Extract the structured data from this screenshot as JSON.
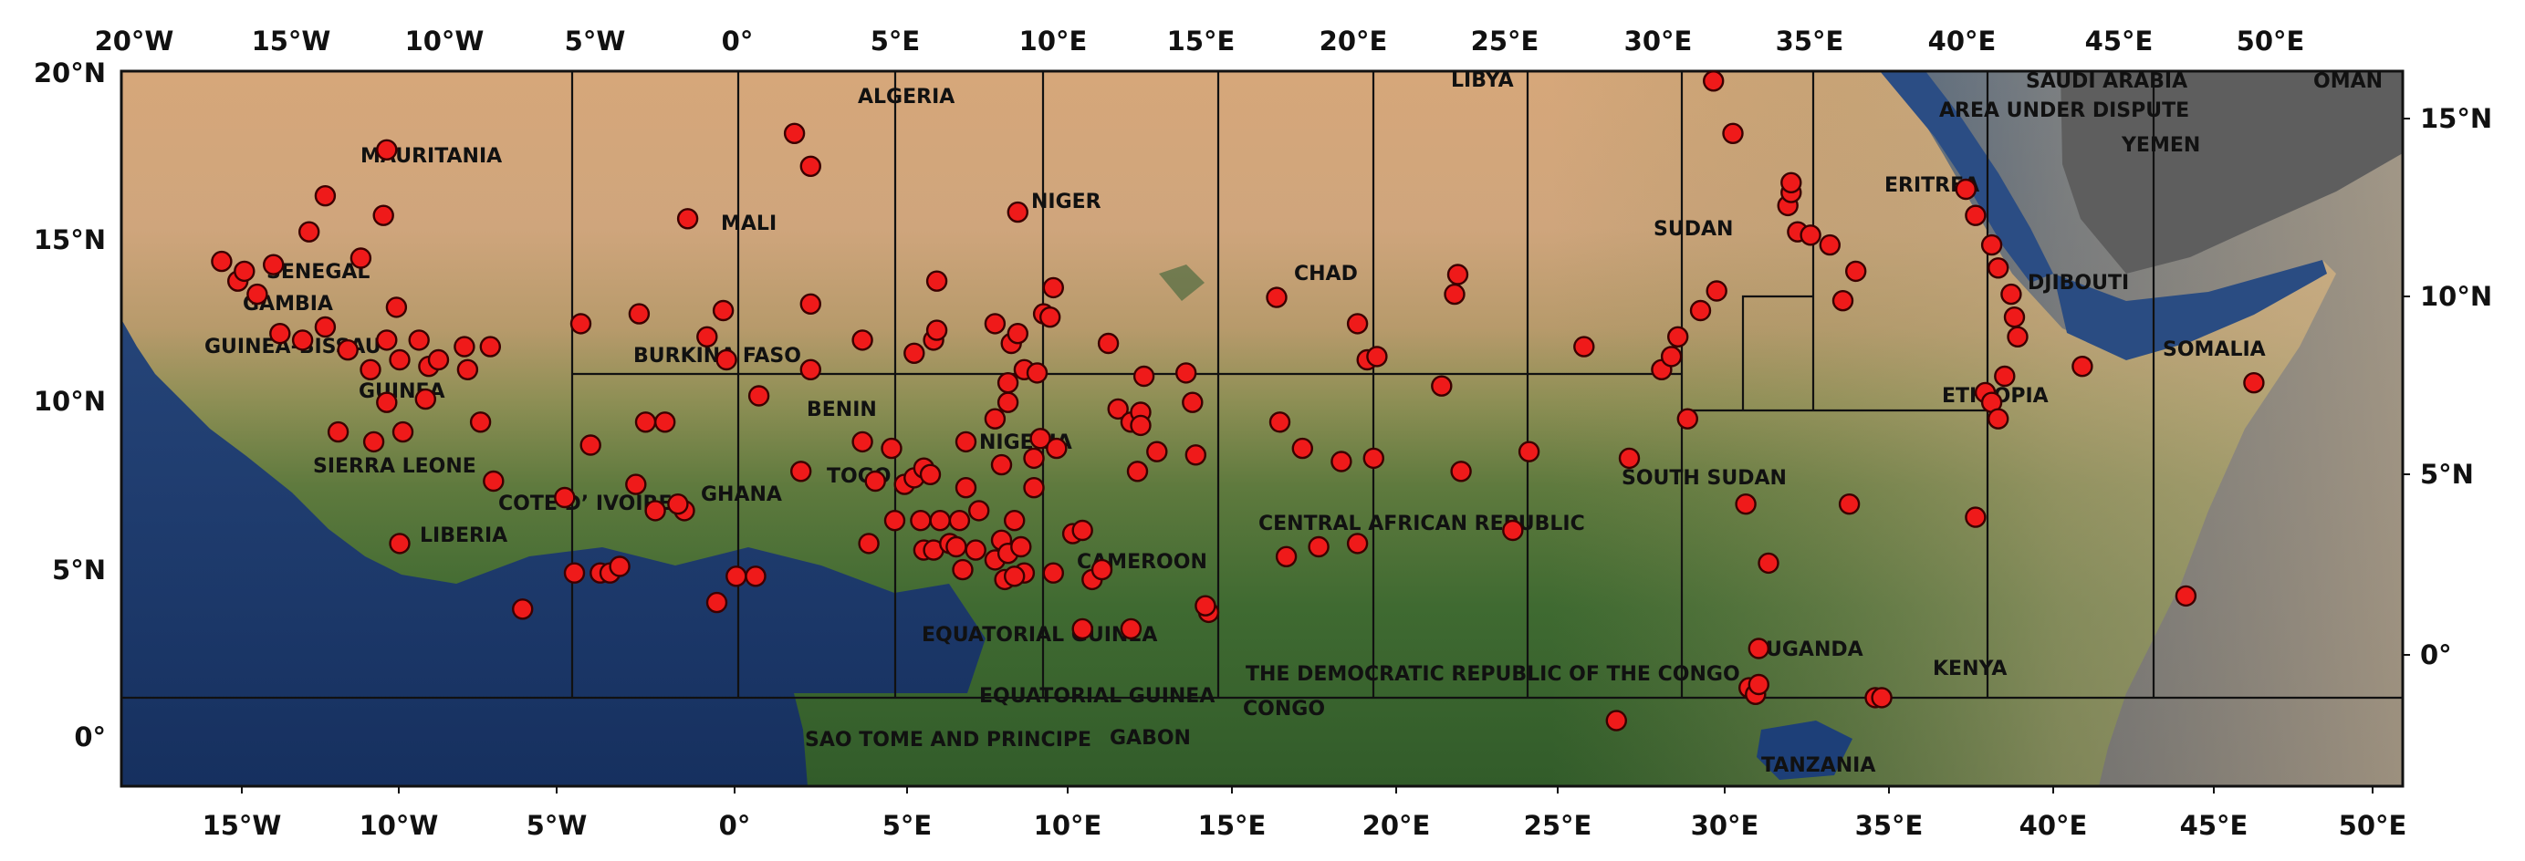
{
  "ticks": {
    "top_lon": [
      "20°W",
      "15°W",
      "10°W",
      "5°W",
      "0°",
      "5°E",
      "10°E",
      "15°E",
      "20°E",
      "25°E",
      "30°E",
      "35°E",
      "40°E",
      "45°E",
      "50°E"
    ],
    "bottom_lon": [
      "15°W",
      "10°W",
      "5°W",
      "0°",
      "5°E",
      "10°E",
      "15°E",
      "20°E",
      "25°E",
      "30°E",
      "35°E",
      "40°E",
      "45°E",
      "50°E"
    ],
    "left_lat": [
      "20°N",
      "15°N",
      "10°N",
      "5°N",
      "0°"
    ],
    "right_lat": [
      "15°N",
      "10°N",
      "5°N",
      "0°"
    ]
  },
  "country_labels": [
    "MAURITANIA",
    "ALGERIA",
    "LIBYA",
    "SAUDI ARABIA",
    "AREA UNDER DISPUTE",
    "OMAN",
    "YEMEN",
    "ERITREA",
    "SUDAN",
    "MALI",
    "NIGER",
    "CHAD",
    "DJIBOUTI",
    "SENEGAL",
    "GAMBIA",
    "GUINEA-BISSAU",
    "BURKINA FASO",
    "GUINEA",
    "SOMALIA",
    "ETHIOPIA",
    "BENIN",
    "NIGERIA",
    "SIERRA LEONE",
    "TOGO",
    "SOUTH SUDAN",
    "COTE D’  IVOIRE",
    "GHANA",
    "LIBERIA",
    "CENTRAL AFRICAN REPUBLIC",
    "CAMEROON",
    "EQUATORIAL GUINEA",
    "UGANDA",
    "THE DEMOCRATIC REPUBLIC OF THE CONGO",
    "KENYA",
    "EQUATORIAL GUINEA",
    "CONGO",
    "SAO TOME AND PRINCIPE",
    "GABON",
    "TANZANIA"
  ],
  "map_data": {
    "type": "scatter",
    "extent": {
      "lon": [
        -19,
        51.5
      ],
      "lat": [
        -1.5,
        20.3
      ]
    },
    "sites": [
      [
        -15.9,
        14.5
      ],
      [
        -15.4,
        13.9
      ],
      [
        -15.2,
        14.2
      ],
      [
        -14.3,
        14.4
      ],
      [
        -14.8,
        13.5
      ],
      [
        -13.2,
        15.4
      ],
      [
        -12.7,
        16.5
      ],
      [
        -10.8,
        17.9
      ],
      [
        -10.9,
        15.9
      ],
      [
        -11.6,
        14.6
      ],
      [
        -14.1,
        12.3
      ],
      [
        -13.4,
        12.1
      ],
      [
        -12.7,
        12.5
      ],
      [
        -12.0,
        11.8
      ],
      [
        -12.3,
        9.3
      ],
      [
        -11.3,
        11.2
      ],
      [
        -10.8,
        12.1
      ],
      [
        -10.5,
        13.1
      ],
      [
        -10.4,
        11.5
      ],
      [
        -9.8,
        12.1
      ],
      [
        -9.5,
        11.3
      ],
      [
        -9.2,
        11.5
      ],
      [
        -8.4,
        11.9
      ],
      [
        -8.3,
        11.2
      ],
      [
        -7.6,
        11.9
      ],
      [
        -10.3,
        9.3
      ],
      [
        -11.2,
        9.0
      ],
      [
        -10.8,
        10.2
      ],
      [
        -9.6,
        10.3
      ],
      [
        -7.9,
        9.6
      ],
      [
        -7.5,
        7.8
      ],
      [
        -10.4,
        5.9
      ],
      [
        -6.6,
        3.9
      ],
      [
        -5.3,
        7.3
      ],
      [
        -4.5,
        8.9
      ],
      [
        -5.0,
        5.0
      ],
      [
        -4.2,
        5.0
      ],
      [
        -3.9,
        5.0
      ],
      [
        -3.6,
        5.2
      ],
      [
        -3.1,
        7.7
      ],
      [
        -2.5,
        6.9
      ],
      [
        -1.6,
        6.9
      ],
      [
        -1.8,
        7.1
      ],
      [
        -0.6,
        4.1
      ],
      [
        0.0,
        4.9
      ],
      [
        0.6,
        4.9
      ],
      [
        -1.5,
        15.8
      ],
      [
        -3.0,
        12.9
      ],
      [
        -4.8,
        12.6
      ],
      [
        -2.2,
        9.6
      ],
      [
        -2.8,
        9.6
      ],
      [
        -0.9,
        12.2
      ],
      [
        -0.4,
        13.0
      ],
      [
        -0.3,
        11.5
      ],
      [
        0.7,
        10.4
      ],
      [
        1.8,
        18.4
      ],
      [
        2.3,
        17.4
      ],
      [
        2.3,
        13.2
      ],
      [
        2.3,
        11.2
      ],
      [
        2.0,
        8.1
      ],
      [
        3.9,
        12.1
      ],
      [
        3.9,
        9.0
      ],
      [
        4.3,
        7.8
      ],
      [
        4.8,
        8.8
      ],
      [
        5.2,
        7.7
      ],
      [
        5.5,
        7.9
      ],
      [
        5.5,
        11.7
      ],
      [
        5.8,
        8.2
      ],
      [
        6.0,
        8.0
      ],
      [
        6.1,
        12.1
      ],
      [
        6.2,
        12.4
      ],
      [
        6.2,
        13.9
      ],
      [
        5.7,
        6.6
      ],
      [
        6.3,
        6.6
      ],
      [
        6.9,
        6.6
      ],
      [
        7.1,
        7.6
      ],
      [
        7.5,
        6.9
      ],
      [
        4.1,
        5.9
      ],
      [
        4.9,
        6.6
      ],
      [
        5.8,
        5.7
      ],
      [
        6.1,
        5.7
      ],
      [
        6.6,
        5.9
      ],
      [
        6.8,
        5.8
      ],
      [
        7.0,
        5.1
      ],
      [
        7.4,
        5.7
      ],
      [
        8.0,
        5.4
      ],
      [
        8.2,
        6.0
      ],
      [
        8.4,
        5.6
      ],
      [
        8.6,
        6.6
      ],
      [
        8.8,
        5.8
      ],
      [
        8.9,
        5.0
      ],
      [
        8.3,
        4.8
      ],
      [
        8.6,
        4.9
      ],
      [
        7.1,
        9.0
      ],
      [
        8.0,
        9.7
      ],
      [
        8.2,
        8.3
      ],
      [
        8.4,
        10.2
      ],
      [
        8.4,
        10.8
      ],
      [
        8.5,
        12.0
      ],
      [
        8.7,
        12.3
      ],
      [
        8.0,
        12.6
      ],
      [
        8.9,
        11.2
      ],
      [
        9.3,
        11.1
      ],
      [
        9.5,
        12.9
      ],
      [
        9.8,
        13.7
      ],
      [
        9.7,
        12.8
      ],
      [
        9.4,
        9.1
      ],
      [
        9.9,
        8.8
      ],
      [
        9.2,
        8.5
      ],
      [
        9.2,
        7.6
      ],
      [
        10.4,
        6.2
      ],
      [
        10.7,
        6.3
      ],
      [
        9.8,
        5.0
      ],
      [
        10.7,
        3.3
      ],
      [
        11.0,
        4.8
      ],
      [
        11.3,
        5.1
      ],
      [
        8.7,
        16.0
      ],
      [
        11.5,
        12.0
      ],
      [
        11.8,
        10.0
      ],
      [
        12.2,
        9.6
      ],
      [
        12.5,
        9.9
      ],
      [
        12.5,
        9.5
      ],
      [
        12.4,
        8.1
      ],
      [
        12.6,
        11.0
      ],
      [
        13.0,
        8.7
      ],
      [
        13.9,
        11.1
      ],
      [
        14.1,
        10.2
      ],
      [
        14.2,
        8.6
      ],
      [
        12.2,
        3.3
      ],
      [
        14.6,
        3.8
      ],
      [
        14.5,
        4.0
      ],
      [
        16.7,
        13.4
      ],
      [
        16.8,
        9.6
      ],
      [
        17.5,
        8.8
      ],
      [
        18.0,
        5.8
      ],
      [
        17.0,
        5.5
      ],
      [
        18.7,
        8.4
      ],
      [
        19.2,
        5.9
      ],
      [
        19.2,
        12.6
      ],
      [
        19.5,
        11.5
      ],
      [
        19.7,
        8.5
      ],
      [
        19.8,
        11.6
      ],
      [
        21.8,
        10.7
      ],
      [
        22.2,
        13.5
      ],
      [
        22.3,
        14.1
      ],
      [
        22.4,
        8.1
      ],
      [
        24.0,
        6.3
      ],
      [
        24.5,
        8.7
      ],
      [
        26.2,
        11.9
      ],
      [
        27.2,
        0.5
      ],
      [
        27.6,
        8.5
      ],
      [
        28.6,
        11.2
      ],
      [
        28.9,
        11.6
      ],
      [
        29.4,
        9.7
      ],
      [
        29.1,
        12.2
      ],
      [
        29.8,
        13.0
      ],
      [
        30.3,
        13.6
      ],
      [
        30.2,
        20.0
      ],
      [
        30.8,
        18.4
      ],
      [
        31.2,
        7.1
      ],
      [
        31.3,
        1.5
      ],
      [
        31.5,
        1.3
      ],
      [
        31.6,
        1.6
      ],
      [
        31.6,
        2.7
      ],
      [
        31.9,
        5.3
      ],
      [
        32.5,
        16.2
      ],
      [
        32.6,
        16.6
      ],
      [
        32.6,
        16.9
      ],
      [
        32.8,
        15.4
      ],
      [
        33.2,
        15.3
      ],
      [
        33.8,
        15.0
      ],
      [
        34.2,
        13.3
      ],
      [
        34.6,
        14.2
      ],
      [
        34.4,
        7.1
      ],
      [
        35.2,
        1.2
      ],
      [
        35.4,
        1.2
      ],
      [
        38.0,
        16.7
      ],
      [
        38.3,
        15.9
      ],
      [
        38.8,
        15.0
      ],
      [
        39.0,
        14.3
      ],
      [
        38.6,
        10.5
      ],
      [
        38.8,
        10.2
      ],
      [
        39.0,
        9.7
      ],
      [
        39.4,
        13.5
      ],
      [
        39.5,
        12.8
      ],
      [
        39.6,
        12.2
      ],
      [
        39.2,
        11.0
      ],
      [
        38.3,
        6.7
      ],
      [
        41.6,
        11.3
      ],
      [
        44.8,
        4.3
      ],
      [
        46.9,
        10.8
      ]
    ]
  }
}
